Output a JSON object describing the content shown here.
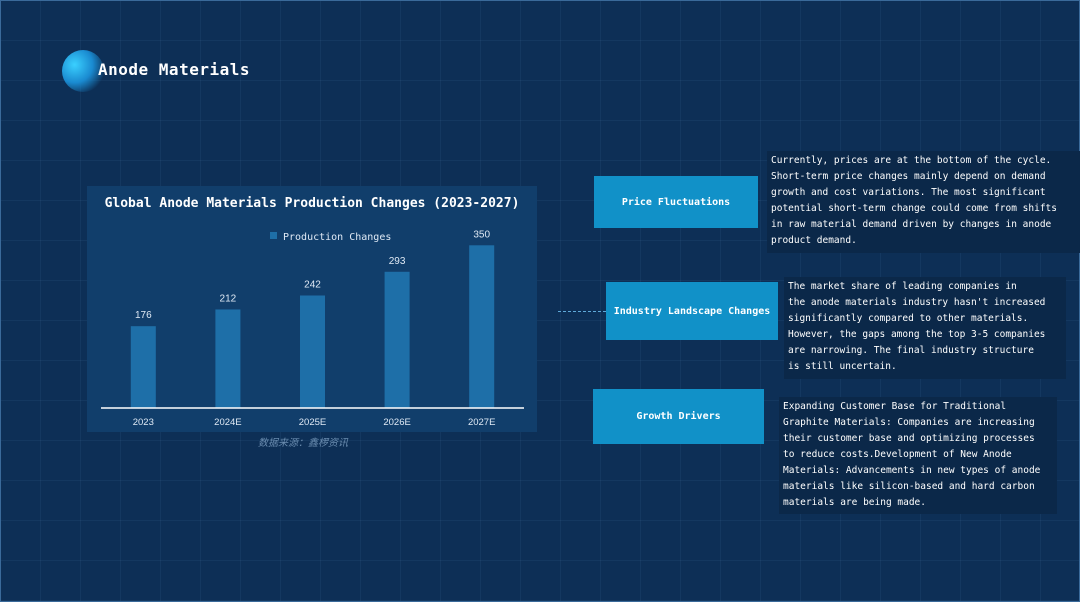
{
  "page": {
    "title": "Anode Materials",
    "source_note": "数据来源：鑫椤资讯"
  },
  "chart_data": {
    "type": "bar",
    "title": "Global Anode Materials Production Changes (2023-2027)",
    "categories": [
      "2023",
      "2024E",
      "2025E",
      "2026E",
      "2027E"
    ],
    "series": [
      {
        "name": "Production Changes",
        "values": [
          176,
          212,
          242,
          293,
          350
        ]
      }
    ],
    "ylim": [
      0,
      370
    ],
    "grid": false,
    "legend": "top-center",
    "bar_color": "#1e6fa8"
  },
  "topics": [
    {
      "label": "Price Fluctuations",
      "lines": [
        "Currently, prices are at the bottom of the cycle.",
        "Short-term price changes mainly depend on demand",
        "growth and cost variations. The most significant",
        "potential short-term change could come from shifts",
        "in raw material demand driven by changes in anode",
        "product demand."
      ]
    },
    {
      "label": "Industry Landscape Changes",
      "lines": [
        "The market share of leading companies in",
        "the anode materials industry hasn't increased",
        "significantly compared to other materials.",
        "However, the gaps among the top 3-5 companies",
        "are narrowing. The final industry structure",
        " is still uncertain."
      ]
    },
    {
      "label": "Growth Drivers",
      "lines": [
        "Expanding Customer Base for Traditional",
        "Graphite Materials: Companies are increasing",
        "their customer base and optimizing processes",
        "to reduce costs.Development of New Anode",
        "Materials: Advancements in new types of anode",
        "materials like silicon-based and hard carbon",
        "materials are being made."
      ]
    }
  ],
  "colors": {
    "background": "#0d2f56",
    "accent": "#1191c8",
    "panel": "#113e6b"
  }
}
